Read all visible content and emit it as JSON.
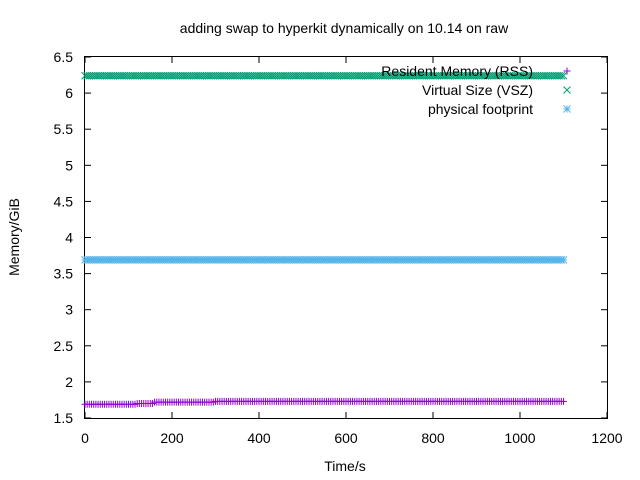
{
  "chart_data": {
    "type": "scatter",
    "title": "adding swap to hyperkit dynamically on 10.14 on raw",
    "xlabel": "Time/s",
    "ylabel": "Memory/GiB",
    "xlim": [
      0,
      1200
    ],
    "ylim": [
      1.5,
      6.5
    ],
    "x_ticks": [
      0,
      200,
      400,
      600,
      800,
      1000,
      1200
    ],
    "y_ticks": [
      1.5,
      2,
      2.5,
      3,
      3.5,
      4,
      4.5,
      5,
      5.5,
      6,
      6.5
    ],
    "grid": false,
    "legend_position": "top-right",
    "sample_interval": 5,
    "x_end": 1100,
    "series": [
      {
        "name": "Resident Memory (RSS)",
        "marker": "plus",
        "color": "#9400D3",
        "segments": [
          {
            "x_start": 0,
            "x_end": 120,
            "y": 1.69
          },
          {
            "x_start": 120,
            "x_end": 160,
            "y": 1.7
          },
          {
            "x_start": 160,
            "x_end": 300,
            "y": 1.72
          },
          {
            "x_start": 300,
            "x_end": 1100,
            "y": 1.73
          }
        ]
      },
      {
        "name": "Virtual Size (VSZ)",
        "marker": "cross",
        "color": "#009E73",
        "segments": [
          {
            "x_start": 0,
            "x_end": 1100,
            "y": 6.24
          }
        ]
      },
      {
        "name": "physical footprint",
        "marker": "star",
        "color": "#56B4E9",
        "segments": [
          {
            "x_start": 0,
            "x_end": 1100,
            "y": 3.69
          }
        ]
      }
    ]
  }
}
